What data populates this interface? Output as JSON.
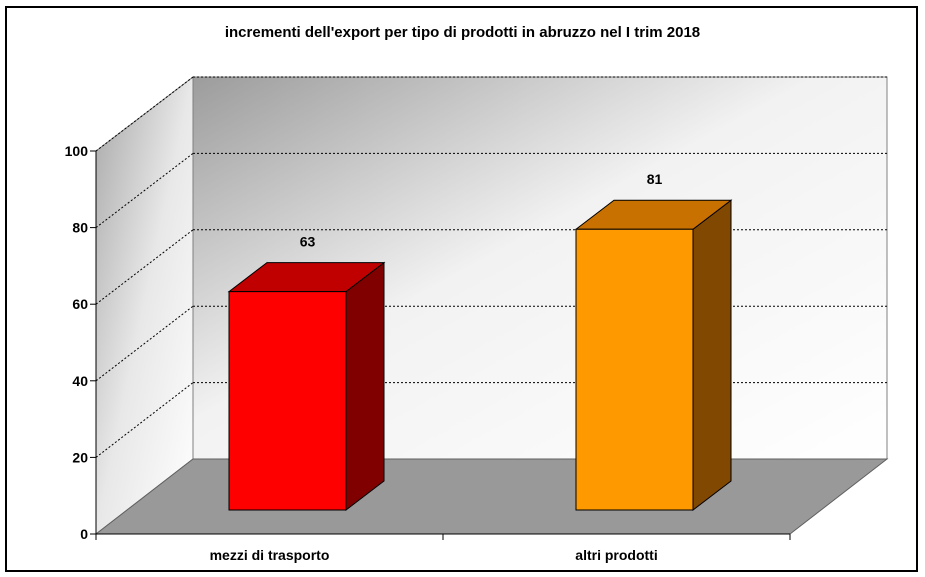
{
  "chart_data": {
    "type": "bar",
    "title": "incrementi dell'export per tipo di prodotti in abruzzo nel I trim 2018",
    "categories": [
      "mezzi di trasporto",
      "altri prodotti"
    ],
    "values": [
      63,
      81
    ],
    "data_labels": [
      "63",
      "81"
    ],
    "ylim": [
      0,
      100
    ],
    "yticks": [
      "0",
      "20",
      "40",
      "60",
      "80",
      "100"
    ],
    "grid": true,
    "legend": "none",
    "style": "3d-column",
    "colors": {
      "mezzi di trasporto": {
        "front": "#ff0000",
        "top": "#c00000",
        "side": "#800000"
      },
      "altri prodotti": {
        "front": "#ff9900",
        "top": "#c87000",
        "side": "#804800"
      },
      "floor": "#999999",
      "gridline": "#000000"
    }
  }
}
